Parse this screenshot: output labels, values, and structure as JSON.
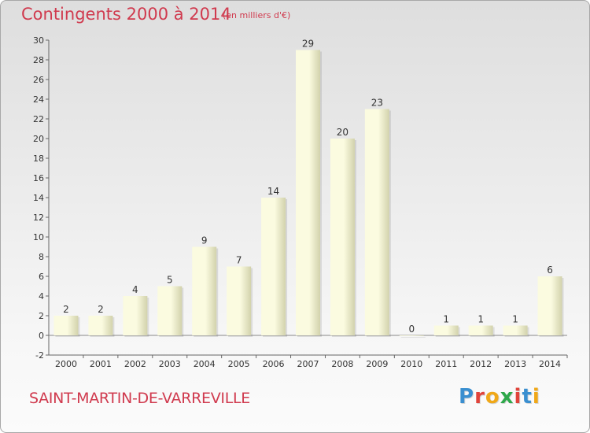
{
  "title": "Contingents 2000 à 2014",
  "subtitle": "(en milliers d'€)",
  "commune": "SAINT-MARTIN-DE-VARREVILLE",
  "logo": {
    "text": "Proxiti",
    "letter_colors": [
      "#3a8fd0",
      "#e0433a",
      "#f0a818",
      "#2ea84a",
      "#e0433a",
      "#3a8fd0",
      "#f0a818"
    ]
  },
  "colors": {
    "title": "#d03a4e",
    "bar_light": "#fbfbe0",
    "bar_dark": "#d2d2ac",
    "text": "#333333"
  },
  "chart_data": {
    "type": "bar",
    "title": "Contingents 2000 à 2014",
    "subtitle": "(en milliers d'€)",
    "categories": [
      "2000",
      "2001",
      "2002",
      "2003",
      "2004",
      "2005",
      "2006",
      "2007",
      "2008",
      "2009",
      "2010",
      "2011",
      "2012",
      "2013",
      "2014"
    ],
    "values": [
      2,
      2,
      4,
      5,
      9,
      7,
      14,
      29,
      20,
      23,
      0,
      1,
      1,
      1,
      6
    ],
    "ylim": [
      -2,
      30
    ],
    "yticks": [
      -2,
      0,
      2,
      4,
      6,
      8,
      10,
      12,
      14,
      16,
      18,
      20,
      22,
      24,
      26,
      28,
      30
    ],
    "xlabel": "",
    "ylabel": "",
    "grid": false,
    "data_labels": true
  }
}
